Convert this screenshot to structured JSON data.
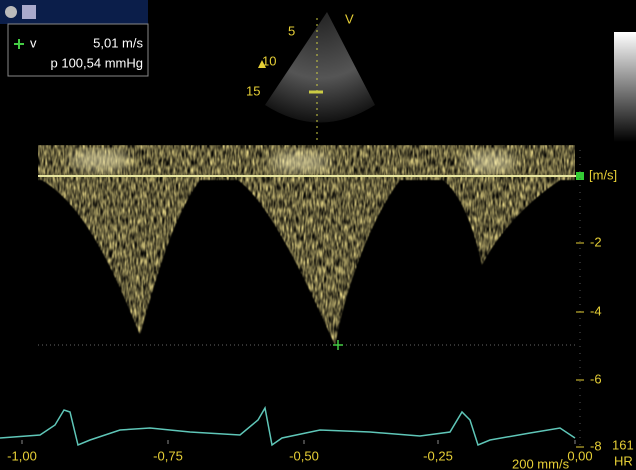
{
  "measurement": {
    "velocity_label": "v",
    "velocity": "5,01 m/s",
    "pressure": "p 100,54 mmHg"
  },
  "sector": {
    "label": "V",
    "depths": [
      "5",
      "10",
      "15"
    ]
  },
  "spectrum": {
    "unit": "[m/s]",
    "scale": [
      "-2",
      "-4",
      "-6",
      "-8"
    ],
    "time_axis": [
      "-1,00",
      "-0,75",
      "-0,50",
      "-0,25",
      "0,00"
    ],
    "sweep_speed": "200 mm/s"
  },
  "heart_rate": {
    "value": "161",
    "label": "HR"
  }
}
